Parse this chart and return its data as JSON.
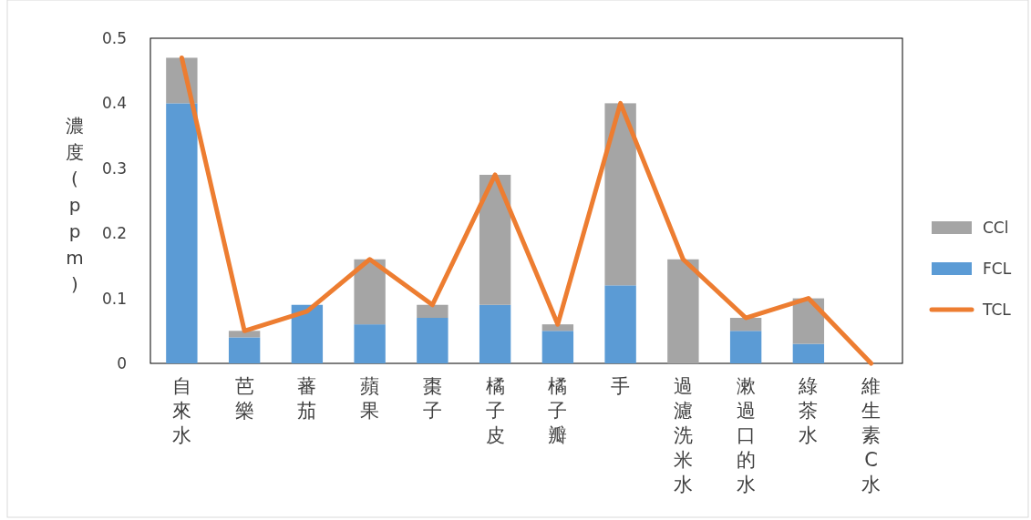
{
  "chart_data": {
    "type": "bar",
    "stacked": true,
    "ylabel": "濃度(ppm)",
    "categories": [
      "自來水",
      "芭樂",
      "蕃茄",
      "蘋果",
      "棗子",
      "橘子皮",
      "橘子瓣",
      "手",
      "過濾洗米水",
      "漱過口的水",
      "綠茶水",
      "維生素C水"
    ],
    "series": [
      {
        "name": "FCL",
        "color": "#5b9bd5",
        "values": [
          0.4,
          0.04,
          0.09,
          0.06,
          0.07,
          0.09,
          0.05,
          0.12,
          0,
          0.05,
          0.03,
          0
        ]
      },
      {
        "name": "CCl",
        "color": "#a5a5a5",
        "values": [
          0.07,
          0.01,
          0,
          0.1,
          0.02,
          0.2,
          0.01,
          0.28,
          0.16,
          0.02,
          0.07,
          0
        ]
      },
      {
        "name": "TCL",
        "type": "line",
        "color": "#ed7d31",
        "values": [
          0.47,
          0.05,
          0.08,
          0.16,
          0.09,
          0.29,
          0.06,
          0.4,
          0.16,
          0.07,
          0.1,
          0
        ]
      }
    ],
    "ylim": [
      0,
      0.5
    ],
    "yticks": [
      0,
      0.1,
      0.2,
      0.3,
      0.4,
      0.5
    ],
    "legend": "right"
  }
}
